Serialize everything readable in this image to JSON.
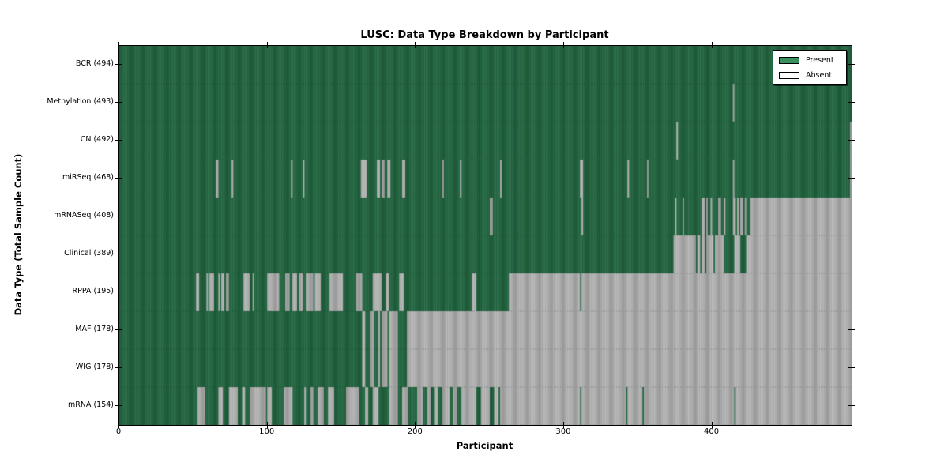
{
  "chart_data": {
    "type": "heatmap",
    "title": "LUSC: Data Type Breakdown by Participant",
    "xlabel": "Participant",
    "ylabel": "Data Type (Total Sample Count)",
    "participants_total": 494,
    "x_range": [
      0,
      494
    ],
    "x_ticks": [
      0,
      100,
      200,
      300,
      400
    ],
    "grid": false,
    "legend_position": "top-right",
    "legend": [
      {
        "label": "Present",
        "swatch": "present"
      },
      {
        "label": "Absent",
        "swatch": "absent"
      }
    ],
    "colors": {
      "present_fill": "#3a8f5f",
      "present_edge": "#1b5435",
      "absent_fill": "#ffffff",
      "absent_edge": "#8f8f8f",
      "axis": "#000000"
    },
    "rows": [
      {
        "label": "BCR (494)",
        "name": "BCR",
        "count": 494,
        "present_ranges": [
          [
            0,
            493
          ]
        ]
      },
      {
        "label": "Methylation (493)",
        "name": "Methylation",
        "count": 493,
        "present_ranges": [
          [
            0,
            413
          ],
          [
            415,
            493
          ]
        ]
      },
      {
        "label": "CN (492)",
        "name": "CN",
        "count": 492,
        "present_ranges": [
          [
            0,
            375
          ],
          [
            377,
            492
          ]
        ]
      },
      {
        "label": "miRSeq (468)",
        "name": "miRSeq",
        "count": 468,
        "present_ranges": [
          [
            0,
            64
          ],
          [
            67,
            75
          ],
          [
            77,
            115
          ],
          [
            117,
            123
          ],
          [
            125,
            162
          ],
          [
            167,
            173
          ],
          [
            176,
            176
          ],
          [
            179,
            180
          ],
          [
            183,
            190
          ],
          [
            193,
            217
          ],
          [
            219,
            229
          ],
          [
            231,
            256
          ],
          [
            258,
            310
          ],
          [
            313,
            342
          ],
          [
            344,
            355
          ],
          [
            357,
            413
          ],
          [
            415,
            492
          ]
        ]
      },
      {
        "label": "mRNASeq (408)",
        "name": "mRNASeq",
        "count": 408,
        "present_ranges": [
          [
            0,
            249
          ],
          [
            252,
            311
          ],
          [
            313,
            374
          ],
          [
            376,
            379
          ],
          [
            381,
            392
          ],
          [
            395,
            395
          ],
          [
            397,
            398
          ],
          [
            400,
            403
          ],
          [
            406,
            407
          ],
          [
            409,
            413
          ],
          [
            416,
            416
          ],
          [
            418,
            418
          ],
          [
            421,
            421
          ],
          [
            423,
            425
          ]
        ]
      },
      {
        "label": "Clinical (389)",
        "name": "Clinical",
        "count": 389,
        "present_ranges": [
          [
            0,
            373
          ],
          [
            389,
            389
          ],
          [
            392,
            392
          ],
          [
            395,
            395
          ],
          [
            401,
            401
          ],
          [
            408,
            414
          ],
          [
            419,
            422
          ]
        ]
      },
      {
        "label": "RPPA (195)",
        "name": "RPPA",
        "count": 195,
        "present_ranges": [
          [
            0,
            51
          ],
          [
            54,
            58
          ],
          [
            60,
            60
          ],
          [
            64,
            66
          ],
          [
            68,
            68
          ],
          [
            71,
            71
          ],
          [
            74,
            83
          ],
          [
            88,
            89
          ],
          [
            91,
            99
          ],
          [
            108,
            111
          ],
          [
            115,
            116
          ],
          [
            120,
            120
          ],
          [
            124,
            125
          ],
          [
            131,
            131
          ],
          [
            136,
            141
          ],
          [
            151,
            159
          ],
          [
            164,
            170
          ],
          [
            177,
            179
          ],
          [
            182,
            188
          ],
          [
            192,
            237
          ],
          [
            241,
            262
          ],
          [
            311,
            311
          ]
        ]
      },
      {
        "label": "MAF (178)",
        "name": "MAF",
        "count": 178,
        "present_ranges": [
          [
            0,
            163
          ],
          [
            166,
            168
          ],
          [
            172,
            174
          ],
          [
            176,
            176
          ],
          [
            181,
            181
          ],
          [
            188,
            193
          ]
        ]
      },
      {
        "label": "WIG (178)",
        "name": "WIG",
        "count": 178,
        "present_ranges": [
          [
            0,
            163
          ],
          [
            166,
            168
          ],
          [
            172,
            174
          ],
          [
            176,
            176
          ],
          [
            181,
            181
          ],
          [
            188,
            193
          ]
        ]
      },
      {
        "label": "mRNA (154)",
        "name": "mRNA",
        "count": 154,
        "present_ranges": [
          [
            0,
            52
          ],
          [
            58,
            66
          ],
          [
            70,
            73
          ],
          [
            80,
            82
          ],
          [
            85,
            87
          ],
          [
            99,
            99
          ],
          [
            103,
            110
          ],
          [
            117,
            124
          ],
          [
            126,
            128
          ],
          [
            131,
            133
          ],
          [
            138,
            140
          ],
          [
            145,
            152
          ],
          [
            162,
            165
          ],
          [
            168,
            170
          ],
          [
            175,
            181
          ],
          [
            188,
            190
          ],
          [
            195,
            200
          ],
          [
            205,
            207
          ],
          [
            210,
            212
          ],
          [
            215,
            217
          ],
          [
            223,
            224
          ],
          [
            228,
            230
          ],
          [
            241,
            243
          ],
          [
            250,
            252
          ],
          [
            256,
            256
          ],
          [
            311,
            311
          ],
          [
            342,
            342
          ],
          [
            353,
            353
          ],
          [
            415,
            415
          ]
        ]
      }
    ]
  }
}
